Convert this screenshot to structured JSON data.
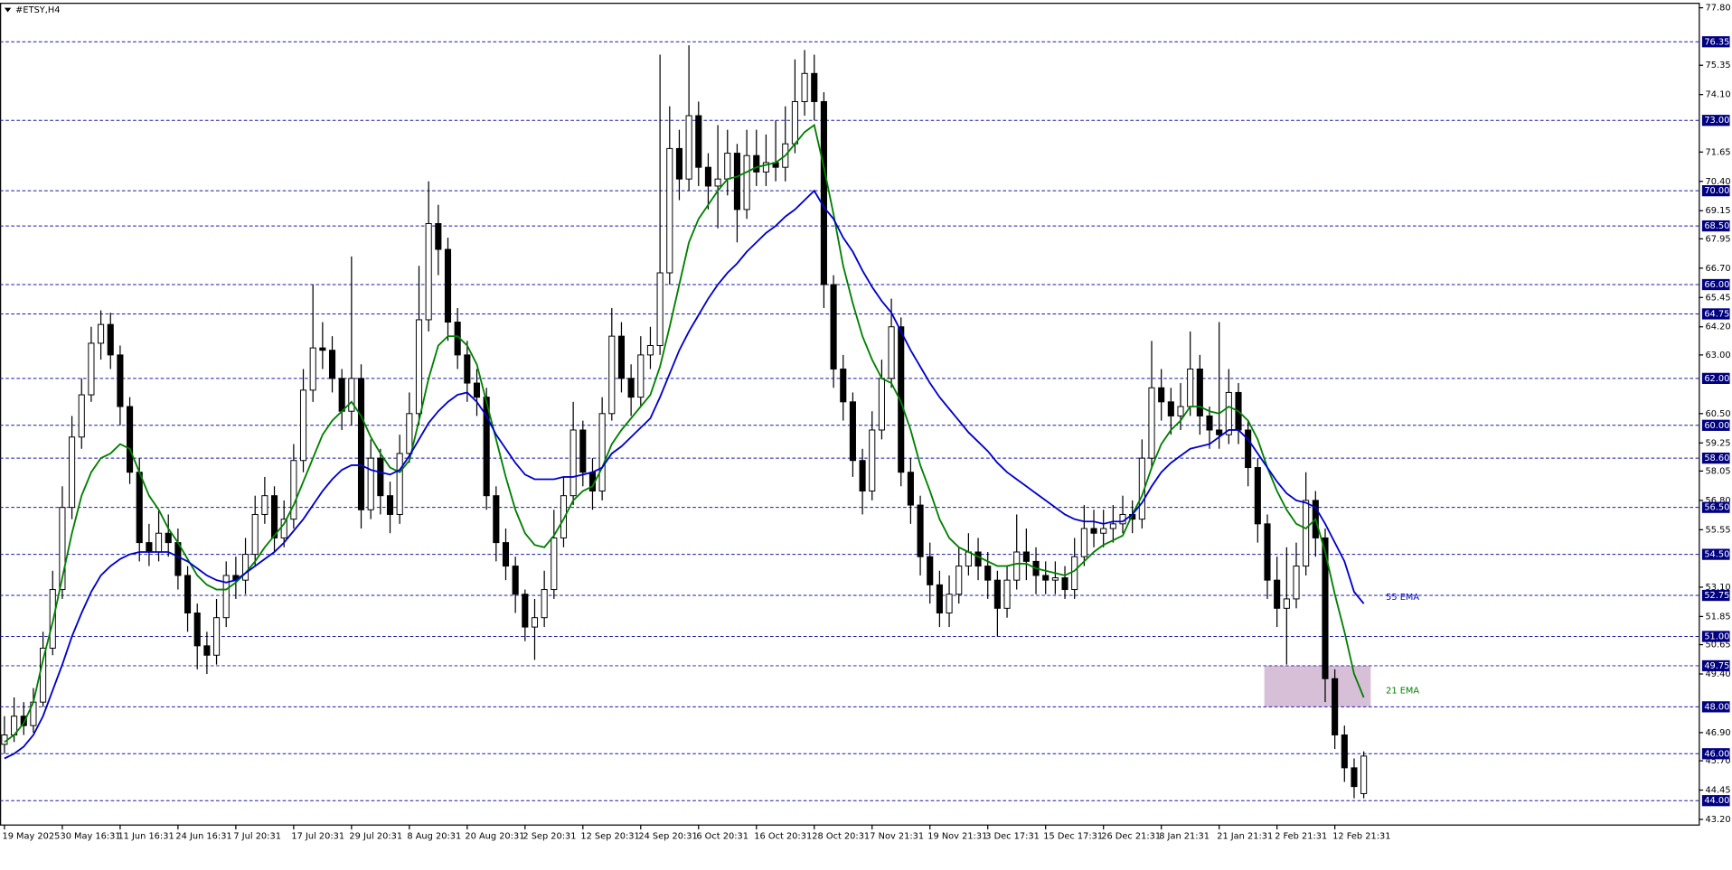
{
  "chart_data": {
    "type": "candlestick",
    "title": "#ETSY,H4",
    "categories": [
      "19 May 2025",
      null,
      null,
      null,
      null,
      null,
      "30 May 16:31",
      null,
      null,
      null,
      null,
      null,
      "11 Jun 16:31",
      null,
      null,
      null,
      null,
      null,
      "24 Jun 16:31",
      null,
      null,
      null,
      null,
      null,
      "7 Jul 20:31",
      null,
      null,
      null,
      null,
      null,
      "17 Jul 20:31",
      null,
      null,
      null,
      null,
      null,
      "29 Jul 20:31",
      null,
      null,
      null,
      null,
      null,
      "8 Aug 20:31",
      null,
      null,
      null,
      null,
      null,
      "20 Aug 20:31",
      null,
      null,
      null,
      null,
      null,
      "2 Sep 20:31",
      null,
      null,
      null,
      null,
      null,
      "12 Sep 20:31",
      null,
      null,
      null,
      null,
      null,
      "24 Sep 20:31",
      null,
      null,
      null,
      null,
      null,
      "6 Oct 20:31",
      null,
      null,
      null,
      null,
      null,
      "16 Oct 20:31",
      null,
      null,
      null,
      null,
      null,
      "28 Oct 20:31",
      null,
      null,
      null,
      null,
      null,
      "7 Nov 21:31",
      null,
      null,
      null,
      null,
      null,
      "19 Nov 21:31",
      null,
      null,
      null,
      null,
      null,
      "3 Dec 17:31",
      null,
      null,
      null,
      null,
      null,
      "15 Dec 17:31",
      null,
      null,
      null,
      null,
      null,
      "26 Dec 21:31",
      null,
      null,
      null,
      null,
      null,
      "8 Jan 21:31",
      null,
      null,
      null,
      null,
      null,
      "21 Jan 21:31",
      null,
      null,
      null,
      null,
      null,
      "2 Feb 21:31",
      null,
      null,
      null,
      null,
      null,
      "12 Feb 21:31",
      null,
      null,
      null
    ],
    "candles": [
      [
        46.4,
        47.6,
        46.0,
        46.8
      ],
      [
        46.8,
        48.4,
        46.5,
        47.6
      ],
      [
        47.6,
        48.2,
        46.8,
        47.2
      ],
      [
        47.2,
        48.8,
        46.9,
        48.2
      ],
      [
        48.2,
        51.2,
        48.0,
        50.5
      ],
      [
        50.5,
        53.8,
        50.2,
        53.0
      ],
      [
        53.0,
        57.4,
        52.6,
        56.5
      ],
      [
        56.5,
        60.4,
        56.0,
        59.5
      ],
      [
        59.5,
        62.0,
        59.0,
        61.3
      ],
      [
        61.3,
        64.2,
        61.0,
        63.5
      ],
      [
        63.5,
        64.9,
        62.8,
        64.3
      ],
      [
        64.3,
        64.8,
        62.4,
        63.0
      ],
      [
        63.0,
        63.4,
        60.0,
        60.8
      ],
      [
        60.8,
        61.2,
        57.5,
        58.0
      ],
      [
        58.0,
        58.6,
        54.2,
        55.0
      ],
      [
        55.0,
        55.8,
        54.0,
        54.6
      ],
      [
        54.6,
        56.4,
        54.2,
        55.4
      ],
      [
        55.4,
        56.2,
        54.4,
        55.0
      ],
      [
        55.0,
        55.6,
        53.0,
        53.6
      ],
      [
        53.6,
        54.0,
        51.2,
        52.0
      ],
      [
        52.0,
        52.4,
        49.6,
        50.6
      ],
      [
        50.6,
        51.2,
        49.4,
        50.2
      ],
      [
        50.2,
        52.6,
        49.8,
        51.8
      ],
      [
        51.8,
        54.2,
        51.4,
        53.6
      ],
      [
        53.6,
        54.4,
        52.6,
        53.4
      ],
      [
        53.4,
        55.2,
        52.8,
        54.5
      ],
      [
        54.5,
        57.0,
        54.0,
        56.2
      ],
      [
        56.2,
        57.8,
        55.8,
        57.0
      ],
      [
        57.0,
        57.4,
        54.6,
        55.2
      ],
      [
        55.2,
        56.8,
        54.8,
        56.0
      ],
      [
        56.0,
        59.2,
        55.6,
        58.5
      ],
      [
        58.5,
        62.4,
        58.0,
        61.5
      ],
      [
        61.5,
        66.0,
        61.0,
        63.3
      ],
      [
        63.3,
        64.4,
        62.4,
        63.2
      ],
      [
        63.2,
        63.8,
        61.4,
        62.0
      ],
      [
        62.0,
        62.4,
        59.8,
        60.6
      ],
      [
        60.6,
        67.2,
        60.0,
        62.0
      ],
      [
        62.0,
        62.6,
        55.6,
        56.4
      ],
      [
        56.4,
        59.4,
        56.0,
        58.6
      ],
      [
        58.6,
        59.0,
        56.2,
        57.0
      ],
      [
        57.0,
        57.6,
        55.4,
        56.2
      ],
      [
        56.2,
        59.6,
        55.8,
        58.8
      ],
      [
        58.8,
        61.4,
        58.4,
        60.5
      ],
      [
        60.5,
        66.8,
        60.0,
        64.5
      ],
      [
        64.5,
        70.4,
        64.0,
        68.6
      ],
      [
        68.6,
        69.4,
        66.4,
        67.5
      ],
      [
        67.5,
        68.0,
        63.6,
        64.4
      ],
      [
        64.4,
        65.0,
        62.4,
        63.0
      ],
      [
        63.0,
        63.6,
        61.0,
        61.8
      ],
      [
        61.8,
        62.4,
        60.4,
        61.2
      ],
      [
        61.2,
        61.6,
        56.4,
        57.0
      ],
      [
        57.0,
        57.4,
        54.2,
        55.0
      ],
      [
        55.0,
        55.6,
        53.4,
        54.0
      ],
      [
        54.0,
        54.4,
        52.0,
        52.8
      ],
      [
        52.8,
        53.0,
        50.8,
        51.4
      ],
      [
        51.4,
        52.6,
        50.0,
        51.8
      ],
      [
        51.8,
        53.8,
        51.4,
        53.0
      ],
      [
        53.0,
        56.4,
        52.6,
        55.2
      ],
      [
        55.2,
        57.8,
        54.8,
        57.0
      ],
      [
        57.0,
        61.0,
        56.6,
        59.8
      ],
      [
        59.8,
        60.2,
        57.4,
        58.0
      ],
      [
        58.0,
        58.6,
        56.4,
        57.2
      ],
      [
        57.2,
        61.2,
        56.8,
        60.5
      ],
      [
        60.5,
        65.0,
        60.2,
        63.8
      ],
      [
        63.8,
        64.4,
        61.4,
        62.0
      ],
      [
        62.0,
        62.6,
        60.4,
        61.2
      ],
      [
        61.2,
        63.8,
        60.8,
        63.0
      ],
      [
        63.0,
        64.2,
        62.4,
        63.4
      ],
      [
        63.4,
        75.8,
        63.0,
        66.5
      ],
      [
        66.5,
        73.6,
        66.0,
        71.8
      ],
      [
        71.8,
        72.6,
        69.6,
        70.5
      ],
      [
        70.5,
        76.2,
        70.0,
        73.2
      ],
      [
        73.2,
        73.8,
        70.2,
        71.0
      ],
      [
        71.0,
        71.6,
        69.2,
        70.2
      ],
      [
        70.2,
        72.8,
        68.4,
        70.5
      ],
      [
        70.5,
        72.6,
        69.8,
        71.6
      ],
      [
        71.6,
        72.0,
        67.8,
        69.2
      ],
      [
        69.2,
        72.6,
        68.8,
        71.5
      ],
      [
        71.5,
        72.6,
        70.2,
        70.8
      ],
      [
        70.8,
        72.4,
        70.2,
        71.2
      ],
      [
        71.2,
        73.0,
        70.4,
        71.0
      ],
      [
        71.0,
        73.6,
        70.4,
        72.0
      ],
      [
        72.0,
        75.6,
        71.6,
        73.8
      ],
      [
        73.8,
        76.0,
        73.2,
        75.0
      ],
      [
        75.0,
        75.8,
        73.0,
        73.8
      ],
      [
        73.8,
        74.2,
        65.0,
        66.0
      ],
      [
        66.0,
        66.4,
        61.6,
        62.4
      ],
      [
        62.4,
        63.0,
        60.2,
        61.0
      ],
      [
        61.0,
        61.4,
        57.8,
        58.5
      ],
      [
        58.5,
        59.0,
        56.2,
        57.2
      ],
      [
        57.2,
        60.6,
        56.8,
        59.8
      ],
      [
        59.8,
        62.8,
        59.4,
        62.0
      ],
      [
        62.0,
        65.4,
        61.6,
        64.2
      ],
      [
        64.2,
        64.6,
        57.4,
        58.0
      ],
      [
        58.0,
        58.6,
        55.8,
        56.6
      ],
      [
        56.6,
        57.0,
        53.6,
        54.4
      ],
      [
        54.4,
        55.0,
        52.4,
        53.2
      ],
      [
        53.2,
        53.8,
        51.4,
        52.0
      ],
      [
        52.0,
        53.6,
        51.4,
        52.8
      ],
      [
        52.8,
        54.8,
        52.4,
        54.0
      ],
      [
        54.0,
        55.4,
        53.6,
        54.6
      ],
      [
        54.6,
        55.2,
        53.4,
        54.0
      ],
      [
        54.0,
        54.6,
        52.6,
        53.4
      ],
      [
        53.4,
        53.8,
        51.0,
        52.2
      ],
      [
        52.2,
        54.0,
        51.8,
        53.4
      ],
      [
        53.4,
        56.2,
        53.0,
        54.6
      ],
      [
        54.6,
        55.6,
        53.4,
        54.2
      ],
      [
        54.2,
        54.8,
        52.8,
        53.6
      ],
      [
        53.6,
        54.2,
        52.8,
        53.4
      ],
      [
        53.4,
        54.2,
        52.8,
        53.5
      ],
      [
        53.5,
        54.0,
        52.6,
        53.0
      ],
      [
        53.0,
        55.2,
        52.6,
        54.4
      ],
      [
        54.4,
        56.6,
        54.0,
        55.6
      ],
      [
        55.6,
        56.4,
        54.8,
        55.4
      ],
      [
        55.4,
        56.4,
        54.8,
        55.6
      ],
      [
        55.6,
        56.6,
        55.0,
        55.8
      ],
      [
        55.8,
        57.0,
        55.4,
        56.2
      ],
      [
        56.2,
        56.8,
        55.4,
        56.0
      ],
      [
        56.0,
        59.4,
        55.6,
        58.6
      ],
      [
        58.6,
        63.6,
        58.2,
        61.6
      ],
      [
        61.6,
        62.4,
        60.2,
        61.0
      ],
      [
        61.0,
        61.6,
        59.6,
        60.4
      ],
      [
        60.4,
        61.8,
        59.8,
        60.8
      ],
      [
        60.8,
        64.0,
        60.4,
        62.4
      ],
      [
        62.4,
        63.0,
        59.6,
        60.4
      ],
      [
        60.4,
        60.8,
        59.0,
        59.8
      ],
      [
        59.8,
        64.4,
        59.0,
        59.6
      ],
      [
        59.6,
        62.4,
        59.2,
        61.4
      ],
      [
        61.4,
        61.8,
        59.2,
        59.8
      ],
      [
        59.8,
        60.2,
        57.4,
        58.2
      ],
      [
        58.2,
        58.6,
        55.0,
        55.8
      ],
      [
        55.8,
        56.2,
        52.6,
        53.4
      ],
      [
        53.4,
        54.4,
        51.4,
        52.2
      ],
      [
        52.2,
        54.8,
        49.8,
        52.6
      ],
      [
        52.6,
        55.0,
        52.2,
        54.0
      ],
      [
        54.0,
        58.0,
        53.6,
        56.8
      ],
      [
        56.8,
        57.2,
        54.4,
        55.2
      ],
      [
        55.2,
        55.6,
        48.2,
        49.2
      ],
      [
        49.2,
        49.6,
        46.2,
        46.8
      ],
      [
        46.8,
        47.2,
        44.8,
        45.4
      ],
      [
        45.4,
        45.8,
        44.1,
        44.6
      ],
      [
        44.3,
        46.1,
        44.1,
        45.9
      ]
    ],
    "series": [
      {
        "name": "21 EMA",
        "color": "#008000",
        "values": [
          46.5,
          46.8,
          47.3,
          48.2,
          50,
          51.6,
          53.5,
          55.4,
          57,
          58,
          58.6,
          58.8,
          59.2,
          59.0,
          58,
          57,
          56.4,
          55.6,
          55,
          54.3,
          53.6,
          53.2,
          53,
          53,
          53.3,
          53.7,
          54.2,
          54.8,
          55.3,
          55.8,
          56.6,
          57.6,
          58.6,
          59.6,
          60.2,
          60.6,
          61,
          60.4,
          59.5,
          58.8,
          58.2,
          58,
          58.5,
          60.2,
          62,
          63.4,
          63.8,
          63.8,
          63.4,
          62.6,
          61,
          59.4,
          57.8,
          56.4,
          55.4,
          54.9,
          54.8,
          55.3,
          56,
          56.8,
          57.2,
          57.4,
          58.2,
          59.2,
          59.8,
          60.3,
          60.8,
          61.3,
          62.5,
          64.2,
          66,
          67.8,
          68.8,
          69.4,
          70,
          70.5,
          70.6,
          70.8,
          71,
          71.1,
          71.2,
          71.5,
          72,
          72.5,
          72.8,
          71,
          69,
          66.8,
          65.2,
          63.8,
          62.8,
          62,
          61.8,
          61,
          59.8,
          58.3,
          57.2,
          56,
          55.2,
          54.8,
          54.6,
          54.4,
          54.2,
          54,
          54,
          54.1,
          54.1,
          53.9,
          53.8,
          53.7,
          53.6,
          53.8,
          54.2,
          54.6,
          54.9,
          55.1,
          55.3,
          56.2,
          57,
          58.2,
          59.2,
          59.8,
          60.2,
          60.8,
          60.8,
          60.6,
          60.5,
          60.8,
          60.6,
          60.2,
          59.4,
          58.2,
          57.2,
          56.4,
          55.8,
          55.6,
          56,
          54.6,
          52.8,
          51.2,
          49.4,
          48.4
        ]
      },
      {
        "name": "55 EMA",
        "color": "#0000cd",
        "values": [
          45.8,
          46,
          46.3,
          46.8,
          47.6,
          48.7,
          49.8,
          51,
          52,
          52.9,
          53.6,
          54,
          54.3,
          54.5,
          54.6,
          54.6,
          54.6,
          54.6,
          54.4,
          54.2,
          53.9,
          53.6,
          53.4,
          53.3,
          53.4,
          53.7,
          54,
          54.3,
          54.6,
          55,
          55.5,
          56,
          56.6,
          57.2,
          57.7,
          58.1,
          58.3,
          58.3,
          58.1,
          58,
          57.9,
          58.1,
          58.7,
          59.4,
          60.1,
          60.6,
          61,
          61.3,
          61.4,
          61,
          60.4,
          59.6,
          59,
          58.4,
          57.9,
          57.7,
          57.7,
          57.7,
          57.8,
          57.8,
          57.9,
          58,
          58.2,
          58.8,
          59.1,
          59.5,
          59.9,
          60.3,
          61.2,
          62.2,
          63.2,
          64,
          64.7,
          65.4,
          66,
          66.5,
          66.9,
          67.4,
          67.8,
          68.2,
          68.5,
          68.9,
          69.2,
          69.6,
          70,
          69.3,
          68.8,
          68,
          67.4,
          66.6,
          65.9,
          65.3,
          64.8,
          64,
          63.2,
          62.5,
          61.8,
          61.2,
          60.7,
          60.2,
          59.7,
          59.3,
          58.9,
          58.4,
          58,
          57.7,
          57.4,
          57.1,
          56.8,
          56.5,
          56.2,
          56,
          55.9,
          55.9,
          55.8,
          55.9,
          55.9,
          56.2,
          56.7,
          57.4,
          58,
          58.4,
          58.7,
          59,
          59.1,
          59.2,
          59.5,
          59.8,
          59.8,
          59.4,
          58.8,
          58.2,
          57.6,
          57.1,
          56.8,
          56.7,
          56.5,
          55.8,
          55,
          54.2,
          52.9,
          52.4
        ]
      }
    ],
    "ylim": [
      42.96,
      77.99
    ],
    "yticks": [
      {
        "value": 77.8,
        "label": "77.80"
      },
      75.35,
      {
        "value": 74.1,
        "label": "74.10"
      },
      71.65,
      {
        "value": 70.4,
        "label": "70.40"
      },
      69.15,
      67.95,
      {
        "value": 66.7,
        "label": "66.70"
      },
      65.45,
      {
        "value": 64.2,
        "label": "64.20"
      },
      {
        "value": 63,
        "label": "63.00"
      },
      {
        "value": 60.5,
        "label": "60.50"
      },
      59.25,
      58.05,
      {
        "value": 56.8,
        "label": "56.80"
      },
      55.55,
      {
        "value": 53.1,
        "label": "53.10"
      },
      51.85,
      50.65,
      {
        "value": 49.4,
        "label": "49.40"
      },
      {
        "value": 46.9,
        "label": "46.90"
      },
      {
        "value": 45.7,
        "label": "45.70"
      },
      44.45,
      {
        "value": 43.2,
        "label": "43.20"
      }
    ],
    "levels": [
      {
        "value": 76.35,
        "label": "76.35"
      },
      {
        "value": 73,
        "label": "73.00"
      },
      {
        "value": 70,
        "label": "70.00"
      },
      {
        "value": 68.5,
        "label": "68.50"
      },
      {
        "value": 66,
        "label": "66.00"
      },
      {
        "value": 64.75,
        "label": "64.75"
      },
      {
        "value": 62,
        "label": "62.00"
      },
      {
        "value": 60,
        "label": "60.00"
      },
      {
        "value": 58.6,
        "label": "58.60"
      },
      {
        "value": 56.5,
        "label": "56.50"
      },
      {
        "value": 54.5,
        "label": "54.50"
      },
      {
        "value": 52.75,
        "label": "52.75"
      },
      {
        "value": 51,
        "label": "51.00"
      },
      {
        "value": 49.75,
        "label": "49.75"
      },
      {
        "value": 48,
        "label": "48.00"
      },
      {
        "value": 46,
        "label": "46.00"
      },
      {
        "value": 44,
        "label": "44.00"
      }
    ],
    "level_color": "#1a1aa0",
    "zone": [
      48,
      49.75
    ],
    "zone_color": "#d8bfd8"
  }
}
